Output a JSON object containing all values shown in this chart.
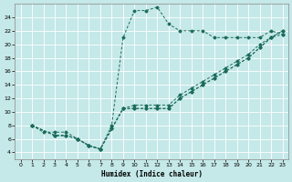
{
  "xlabel": "Humidex (Indice chaleur)",
  "bg_color": "#c5e8e8",
  "grid_color": "#ffffff",
  "line_color": "#1a6b5a",
  "xlim": [
    -0.5,
    23.5
  ],
  "ylim": [
    3.0,
    26.0
  ],
  "xticks": [
    0,
    1,
    2,
    3,
    4,
    5,
    6,
    7,
    8,
    9,
    10,
    11,
    12,
    13,
    14,
    15,
    16,
    17,
    18,
    19,
    20,
    21,
    22,
    23
  ],
  "yticks": [
    4,
    6,
    8,
    10,
    12,
    14,
    16,
    18,
    20,
    22,
    24
  ],
  "series": [
    {
      "x": [
        1,
        2,
        3,
        4,
        5,
        6,
        7,
        8,
        9,
        10,
        11,
        12,
        13,
        14,
        15,
        16,
        17,
        18,
        19,
        20,
        21,
        22,
        23
      ],
      "y": [
        8,
        7,
        7,
        7,
        6,
        5,
        4.5,
        8,
        21,
        25,
        25,
        25.5,
        23,
        22,
        22,
        22,
        21,
        21,
        21,
        21,
        21,
        22,
        21.5
      ]
    },
    {
      "x": [
        1,
        3,
        4,
        5,
        6,
        7,
        8,
        9,
        10,
        11,
        12,
        13,
        14,
        15,
        16,
        17,
        18,
        19,
        20,
        21,
        22,
        23
      ],
      "y": [
        8,
        6.5,
        6.5,
        6,
        5,
        4.5,
        7.5,
        10.5,
        11,
        11,
        11,
        11,
        12.5,
        13.5,
        14.5,
        15.5,
        16.5,
        17.5,
        18.5,
        20,
        21,
        22
      ]
    },
    {
      "x": [
        1,
        3,
        4,
        5,
        6,
        7,
        8,
        9,
        10,
        11,
        12,
        13,
        14,
        15,
        16,
        17,
        18,
        19,
        20,
        21,
        22,
        23
      ],
      "y": [
        8,
        6.5,
        6.5,
        6,
        5,
        4.5,
        7.5,
        10.5,
        10.5,
        10.5,
        10.5,
        10.5,
        12,
        13,
        14,
        15,
        16,
        17,
        18,
        19.5,
        21,
        22
      ]
    },
    {
      "x": [
        1,
        3,
        4,
        5,
        6,
        7,
        8,
        9,
        10,
        11,
        12,
        13,
        14,
        15,
        16,
        17,
        18,
        19,
        20,
        21,
        22,
        23
      ],
      "y": [
        8,
        6.5,
        6.5,
        6,
        5,
        4.5,
        7.5,
        10.5,
        10.5,
        10.5,
        10.5,
        10.5,
        12,
        13,
        14,
        15,
        16,
        17,
        18,
        19.5,
        21,
        21.5
      ]
    }
  ]
}
